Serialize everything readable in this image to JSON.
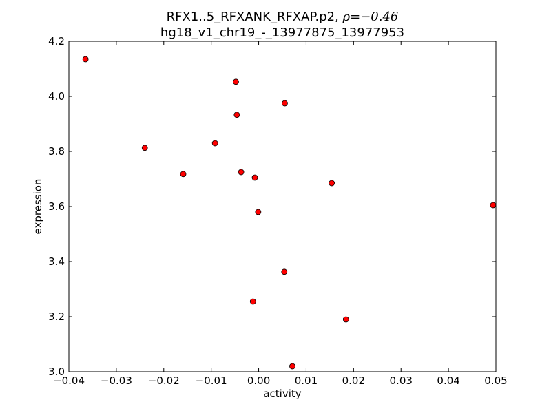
{
  "chart_data": {
    "type": "scatter",
    "title": {
      "line1_prefix": "RFX1..5_RFXANK_RFXAP.p2, ",
      "line1_math": "ρ=−0.46",
      "line2": "hg18_v1_chr19_-_13977875_13977953"
    },
    "xlabel": "activity",
    "ylabel": "expression",
    "xlim": [
      -0.04,
      0.05
    ],
    "ylim": [
      3.0,
      4.2
    ],
    "x_ticks": [
      -0.04,
      -0.03,
      -0.02,
      -0.01,
      0.0,
      0.01,
      0.02,
      0.03,
      0.04,
      0.05
    ],
    "x_tick_labels": [
      "−0.04",
      "−0.03",
      "−0.02",
      "−0.01",
      "0.00",
      "0.01",
      "0.02",
      "0.03",
      "0.04",
      "0.05"
    ],
    "y_ticks": [
      3.0,
      3.2,
      3.4,
      3.6,
      3.8,
      4.0,
      4.2
    ],
    "y_tick_labels": [
      "3.0",
      "3.2",
      "3.4",
      "3.6",
      "3.8",
      "4.0",
      "4.2"
    ],
    "grid": false,
    "marker_color": "#ff0000",
    "marker_edge_color": "#000000",
    "points": [
      {
        "x": -0.0365,
        "y": 4.135
      },
      {
        "x": -0.024,
        "y": 3.813
      },
      {
        "x": -0.0159,
        "y": 3.718
      },
      {
        "x": -0.0092,
        "y": 3.83
      },
      {
        "x": -0.0048,
        "y": 4.053
      },
      {
        "x": -0.0046,
        "y": 3.933
      },
      {
        "x": -0.0037,
        "y": 3.725
      },
      {
        "x": -0.0008,
        "y": 3.705
      },
      {
        "x": -0.0012,
        "y": 3.255
      },
      {
        "x": -0.0001,
        "y": 3.58
      },
      {
        "x": 0.0055,
        "y": 3.975
      },
      {
        "x": 0.0054,
        "y": 3.363
      },
      {
        "x": 0.0071,
        "y": 3.02
      },
      {
        "x": 0.0154,
        "y": 3.685
      },
      {
        "x": 0.0184,
        "y": 3.19
      },
      {
        "x": 0.0494,
        "y": 3.605
      }
    ]
  }
}
